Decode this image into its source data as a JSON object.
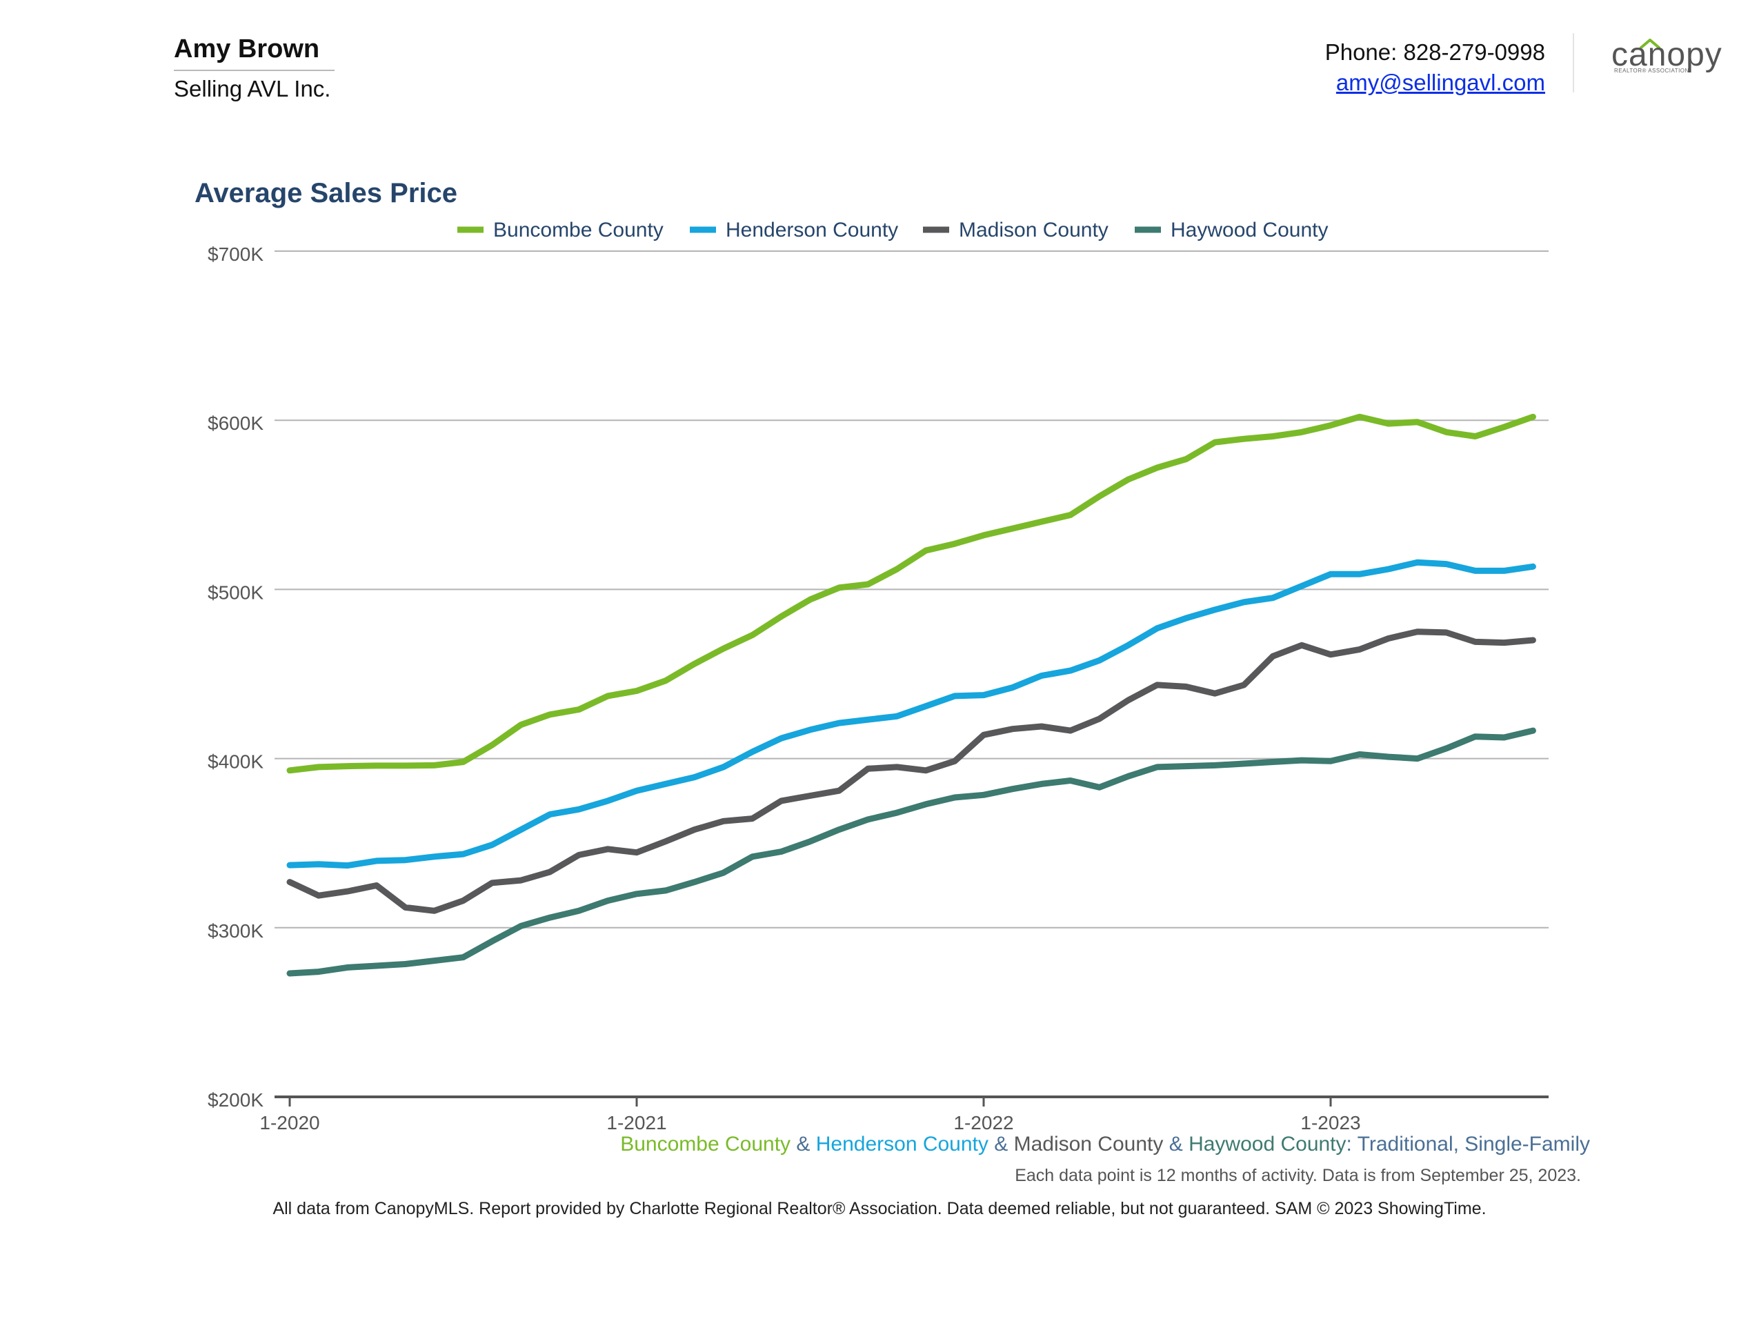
{
  "header": {
    "agent_name": "Amy Brown",
    "company": "Selling AVL Inc.",
    "phone": "Phone: 828-279-0998",
    "email": "amy@sellingavl.com",
    "logo": {
      "wordmark": "canopy",
      "tagline": "REALTOR® ASSOCIATION"
    }
  },
  "subtitle": {
    "parts": [
      {
        "text": "Buncombe County",
        "color": "#7aba28"
      },
      {
        "text": " & ",
        "color": "#4a6f95"
      },
      {
        "text": "Henderson County",
        "color": "#16a5dc"
      },
      {
        "text": " & ",
        "color": "#4a6f95"
      },
      {
        "text": "Madison County",
        "color": "#58585a"
      },
      {
        "text": " & ",
        "color": "#4a6f95"
      },
      {
        "text": "Haywood County",
        "color": "#3d7a70"
      },
      {
        "text": ": Traditional, Single-Family",
        "color": "#4a6f95"
      }
    ]
  },
  "data_note": "Each data point is 12 months of activity. Data is from September 25, 2023.",
  "footer": "All data from CanopyMLS. Report provided by Charlotte Regional Realtor® Association. Data deemed reliable, but not guaranteed. SAM © 2023 ShowingTime.",
  "chart_data": {
    "type": "line",
    "title": "Average Sales Price",
    "xlabel": "",
    "ylabel": "",
    "x": [
      "2020-01",
      "2020-02",
      "2020-03",
      "2020-04",
      "2020-05",
      "2020-06",
      "2020-07",
      "2020-08",
      "2020-09",
      "2020-10",
      "2020-11",
      "2020-12",
      "2021-01",
      "2021-02",
      "2021-03",
      "2021-04",
      "2021-05",
      "2021-06",
      "2021-07",
      "2021-08",
      "2021-09",
      "2021-10",
      "2021-11",
      "2021-12",
      "2022-01",
      "2022-02",
      "2022-03",
      "2022-04",
      "2022-05",
      "2022-06",
      "2022-07",
      "2022-08",
      "2022-09",
      "2022-10",
      "2022-11",
      "2022-12",
      "2023-01",
      "2023-02",
      "2023-03",
      "2023-04",
      "2023-05",
      "2023-06",
      "2023-07",
      "2023-08"
    ],
    "x_tick_labels": [
      {
        "x": "2020-01",
        "label": "1-2020"
      },
      {
        "x": "2021-01",
        "label": "1-2021"
      },
      {
        "x": "2022-01",
        "label": "1-2022"
      },
      {
        "x": "2023-01",
        "label": "1-2023"
      }
    ],
    "y_ticks": [
      200000,
      300000,
      400000,
      500000,
      600000,
      700000
    ],
    "y_tick_labels": [
      "$200K",
      "$300K",
      "$400K",
      "$500K",
      "$600K",
      "$700K"
    ],
    "ylim": [
      200000,
      700000
    ],
    "grid": true,
    "legend_position": "top",
    "series": [
      {
        "name": "Buncombe County",
        "color": "#7aba28",
        "values": [
          393000,
          395000,
          395500,
          395800,
          395800,
          396000,
          398000,
          408000,
          420000,
          426000,
          429000,
          437000,
          440000,
          446000,
          456000,
          465000,
          473000,
          484000,
          494000,
          501000,
          503000,
          512000,
          523000,
          527000,
          532000,
          536000,
          540000,
          544000,
          555000,
          565000,
          572000,
          577000,
          587000,
          589000,
          590500,
          593000,
          597000,
          602000,
          598000,
          599000,
          593000,
          590500,
          596000,
          602000
        ]
      },
      {
        "name": "Henderson County",
        "color": "#16a5dc",
        "values": [
          337000,
          337500,
          336800,
          339500,
          340000,
          342000,
          343500,
          349000,
          358000,
          367000,
          370000,
          375000,
          381000,
          385000,
          389000,
          395000,
          404000,
          412000,
          417000,
          421000,
          423000,
          425000,
          431000,
          437000,
          437500,
          442000,
          449000,
          452000,
          458000,
          467000,
          477000,
          483000,
          488000,
          492500,
          495000,
          502000,
          509000,
          509000,
          512000,
          516000,
          515000,
          511000,
          511000,
          513500
        ]
      },
      {
        "name": "Madison County",
        "color": "#58585a",
        "values": [
          327000,
          319000,
          321500,
          325000,
          312000,
          310000,
          316000,
          326500,
          328000,
          333000,
          343000,
          346500,
          344500,
          351000,
          358000,
          363000,
          364500,
          375000,
          378000,
          381000,
          394000,
          395000,
          393000,
          398500,
          414000,
          417500,
          419000,
          416500,
          423500,
          434500,
          443500,
          442500,
          438500,
          443500,
          460500,
          467000,
          461500,
          464500,
          471000,
          475000,
          474500,
          469000,
          468500,
          470000
        ]
      },
      {
        "name": "Haywood County",
        "color": "#3d7a70",
        "values": [
          273000,
          274000,
          276500,
          277500,
          278500,
          280500,
          282500,
          292000,
          301000,
          306000,
          310000,
          316000,
          320000,
          322000,
          327000,
          332500,
          342000,
          345000,
          351000,
          358000,
          364000,
          368000,
          373000,
          377000,
          378500,
          382000,
          385000,
          387000,
          383000,
          389500,
          395000,
          395500,
          396000,
          397000,
          398000,
          399000,
          398500,
          402500,
          401000,
          400000,
          406000,
          413000,
          412500,
          416500
        ]
      }
    ]
  }
}
